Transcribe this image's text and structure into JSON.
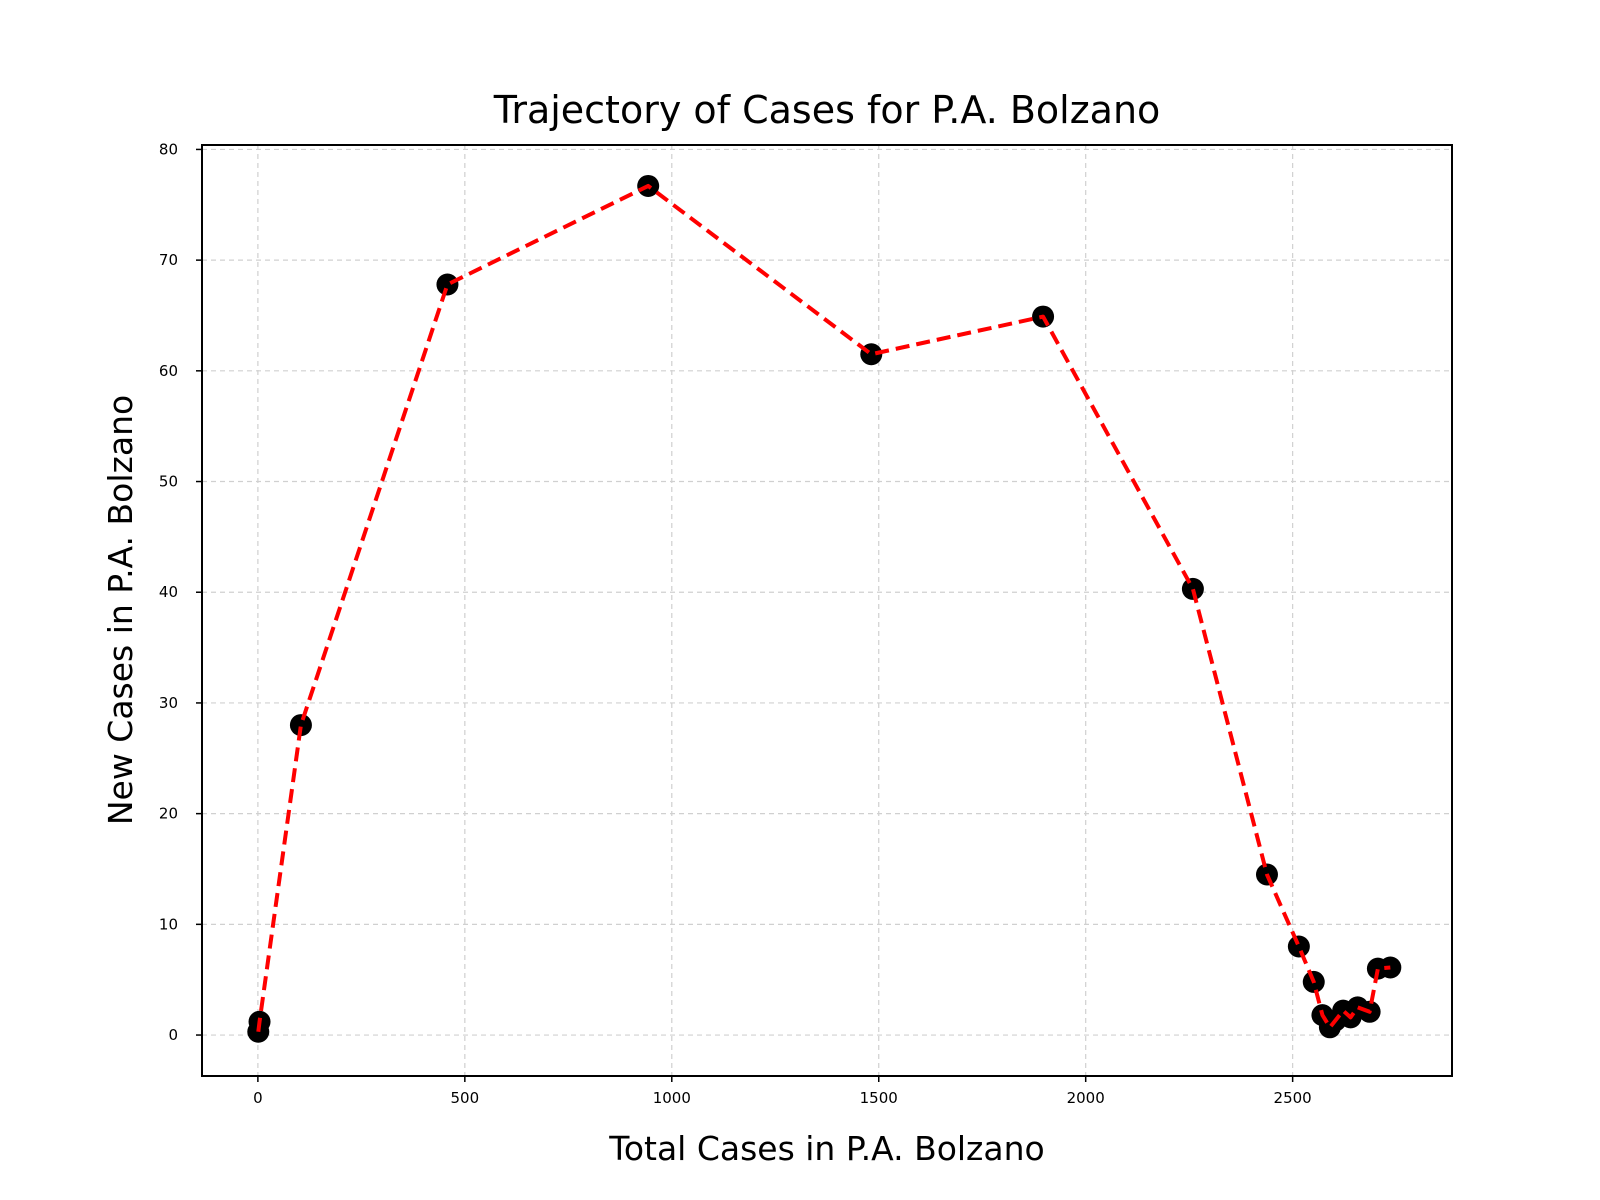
{
  "chart_data": {
    "type": "line",
    "title": "Trajectory of Cases for P.A. Bolzano",
    "xlabel": "Total Cases in P.A. Bolzano",
    "ylabel": "New Cases in P.A. Bolzano",
    "xlim": [
      -135,
      2885
    ],
    "ylim": [
      -3.7,
      80.4
    ],
    "xticks": [
      0,
      500,
      1000,
      1500,
      2000,
      2500
    ],
    "yticks": [
      0,
      10,
      20,
      30,
      40,
      50,
      60,
      70,
      80
    ],
    "grid": true,
    "line_color": "#ff0000",
    "line_style": "dashed",
    "marker_color": "#000000",
    "series": [
      {
        "x": [
          1,
          4,
          104,
          458,
          943,
          1482,
          1897,
          2259,
          2438,
          2515,
          2551,
          2572,
          2590,
          2603,
          2622,
          2640,
          2657,
          2686,
          2706,
          2736
        ],
        "y": [
          0.3,
          1.2,
          28,
          67.8,
          76.7,
          61.5,
          64.9,
          40.3,
          14.5,
          8,
          4.8,
          1.8,
          0.7,
          1.3,
          2.2,
          1.6,
          2.5,
          2.1,
          6,
          6.1
        ]
      }
    ]
  }
}
